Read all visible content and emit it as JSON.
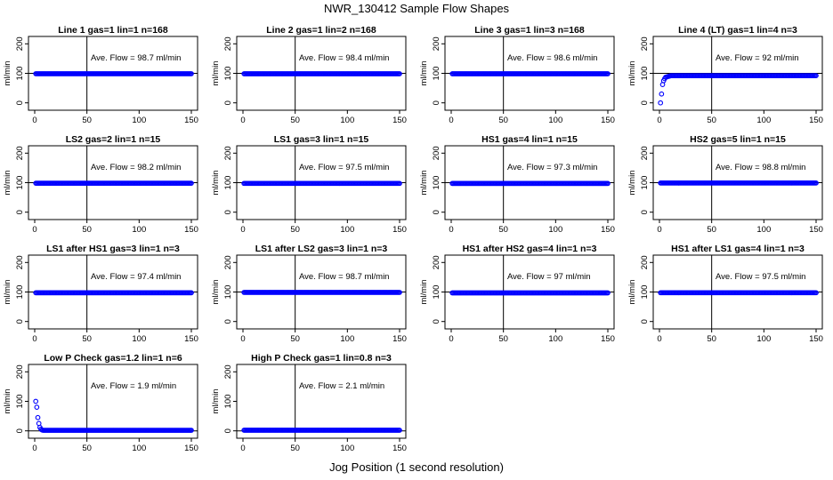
{
  "title": "NWR_130412  Sample Flow Shapes",
  "xlabel": "Jog Position (1 second resolution)",
  "colors": {
    "points": "#0000ff",
    "axes": "#000000"
  },
  "chart_data": [
    {
      "type": "scatter",
      "title": "Line 1 gas=1 lin=1 n=168",
      "ylabel": "ml/min",
      "annotation": "Ave. Flow =  98.7  ml/min",
      "xlim": [
        0,
        150
      ],
      "ylim": [
        0,
        200
      ],
      "vline": 50,
      "hline": 100,
      "xticks": [
        "0",
        "50",
        "100",
        "150"
      ],
      "yticks": [
        "0",
        "100",
        "200"
      ],
      "shape": "flat",
      "level": 98.7
    },
    {
      "type": "scatter",
      "title": "Line 2 gas=1 lin=2 n=168",
      "ylabel": "ml/min",
      "annotation": "Ave. Flow =  98.4  ml/min",
      "xlim": [
        0,
        150
      ],
      "ylim": [
        0,
        200
      ],
      "vline": 50,
      "hline": 100,
      "xticks": [
        "0",
        "50",
        "100",
        "150"
      ],
      "yticks": [
        "0",
        "100",
        "200"
      ],
      "shape": "flat",
      "level": 98.4
    },
    {
      "type": "scatter",
      "title": "Line 3 gas=1 lin=3 n=168",
      "ylabel": "ml/min",
      "annotation": "Ave. Flow =  98.6  ml/min",
      "xlim": [
        0,
        150
      ],
      "ylim": [
        0,
        200
      ],
      "vline": 50,
      "hline": 100,
      "xticks": [
        "0",
        "50",
        "100",
        "150"
      ],
      "yticks": [
        "0",
        "100",
        "200"
      ],
      "shape": "flat",
      "level": 98.6
    },
    {
      "type": "scatter",
      "title": "Line 4 (LT) gas=1 lin=4 n=3",
      "ylabel": "ml/min",
      "annotation": "Ave. Flow =  92  ml/min",
      "xlim": [
        0,
        150
      ],
      "ylim": [
        0,
        200
      ],
      "vline": 50,
      "hline": 100,
      "xticks": [
        "0",
        "50",
        "100",
        "150"
      ],
      "yticks": [
        "0",
        "100",
        "200"
      ],
      "shape": "rise",
      "level": 92,
      "start": [
        [
          1,
          0
        ],
        [
          2,
          30
        ],
        [
          3,
          62
        ],
        [
          4,
          75
        ],
        [
          5,
          82
        ]
      ]
    },
    {
      "type": "scatter",
      "title": "LS2 gas=2 lin=1 n=15",
      "ylabel": "ml/min",
      "annotation": "Ave. Flow =  98.2  ml/min",
      "xlim": [
        0,
        150
      ],
      "ylim": [
        0,
        200
      ],
      "vline": 50,
      "hline": 100,
      "xticks": [
        "0",
        "50",
        "100",
        "150"
      ],
      "yticks": [
        "0",
        "100",
        "200"
      ],
      "shape": "flat",
      "level": 98.2
    },
    {
      "type": "scatter",
      "title": "LS1 gas=3 lin=1 n=15",
      "ylabel": "ml/min",
      "annotation": "Ave. Flow =  97.5  ml/min",
      "xlim": [
        0,
        150
      ],
      "ylim": [
        0,
        200
      ],
      "vline": 50,
      "hline": 100,
      "xticks": [
        "0",
        "50",
        "100",
        "150"
      ],
      "yticks": [
        "0",
        "100",
        "200"
      ],
      "shape": "flat",
      "level": 97.5
    },
    {
      "type": "scatter",
      "title": "HS1 gas=4 lin=1 n=15",
      "ylabel": "ml/min",
      "annotation": "Ave. Flow =  97.3  ml/min",
      "xlim": [
        0,
        150
      ],
      "ylim": [
        0,
        200
      ],
      "vline": 50,
      "hline": 100,
      "xticks": [
        "0",
        "50",
        "100",
        "150"
      ],
      "yticks": [
        "0",
        "100",
        "200"
      ],
      "shape": "flat",
      "level": 97.3
    },
    {
      "type": "scatter",
      "title": "HS2 gas=5 lin=1 n=15",
      "ylabel": "ml/min",
      "annotation": "Ave. Flow =  98.8  ml/min",
      "xlim": [
        0,
        150
      ],
      "ylim": [
        0,
        200
      ],
      "vline": 50,
      "hline": 100,
      "xticks": [
        "0",
        "50",
        "100",
        "150"
      ],
      "yticks": [
        "0",
        "100",
        "200"
      ],
      "shape": "flat",
      "level": 98.8
    },
    {
      "type": "scatter",
      "title": "LS1 after HS1 gas=3 lin=1 n=3",
      "ylabel": "ml/min",
      "annotation": "Ave. Flow =  97.4  ml/min",
      "xlim": [
        0,
        150
      ],
      "ylim": [
        0,
        200
      ],
      "vline": 50,
      "hline": 100,
      "xticks": [
        "0",
        "50",
        "100",
        "150"
      ],
      "yticks": [
        "0",
        "100",
        "200"
      ],
      "shape": "flat",
      "level": 97.4
    },
    {
      "type": "scatter",
      "title": "LS1 after LS2 gas=3 lin=1 n=3",
      "ylabel": "ml/min",
      "annotation": "Ave. Flow =  98.7  ml/min",
      "xlim": [
        0,
        150
      ],
      "ylim": [
        0,
        200
      ],
      "vline": 50,
      "hline": 100,
      "xticks": [
        "0",
        "50",
        "100",
        "150"
      ],
      "yticks": [
        "0",
        "100",
        "200"
      ],
      "shape": "flat",
      "level": 98.7
    },
    {
      "type": "scatter",
      "title": "HS1 after HS2 gas=4 lin=1 n=3",
      "ylabel": "ml/min",
      "annotation": "Ave. Flow =  97  ml/min",
      "xlim": [
        0,
        150
      ],
      "ylim": [
        0,
        200
      ],
      "vline": 50,
      "hline": 100,
      "xticks": [
        "0",
        "50",
        "100",
        "150"
      ],
      "yticks": [
        "0",
        "100",
        "200"
      ],
      "shape": "flat",
      "level": 97
    },
    {
      "type": "scatter",
      "title": "HS1 after LS1 gas=4 lin=1 n=3",
      "ylabel": "ml/min",
      "annotation": "Ave. Flow =  97.5  ml/min",
      "xlim": [
        0,
        150
      ],
      "ylim": [
        0,
        200
      ],
      "vline": 50,
      "hline": 100,
      "xticks": [
        "0",
        "50",
        "100",
        "150"
      ],
      "yticks": [
        "0",
        "100",
        "200"
      ],
      "shape": "flat",
      "level": 97.5
    },
    {
      "type": "scatter",
      "title": "Low P Check gas=1.2 lin=1 n=6",
      "ylabel": "ml/min",
      "annotation": "Ave. Flow =  1.9  ml/min",
      "xlim": [
        0,
        150
      ],
      "ylim": [
        0,
        200
      ],
      "vline": 50,
      "hline": 0,
      "xticks": [
        "0",
        "50",
        "100",
        "150"
      ],
      "yticks": [
        "0",
        "100",
        "200"
      ],
      "shape": "decay",
      "level": 1.9,
      "start": [
        [
          1,
          100
        ],
        [
          2,
          80
        ],
        [
          3,
          45
        ],
        [
          4,
          25
        ],
        [
          5,
          12
        ],
        [
          6,
          6
        ],
        [
          7,
          3
        ]
      ]
    },
    {
      "type": "scatter",
      "title": "High P Check gas=1 lin=0.8 n=3",
      "ylabel": "ml/min",
      "annotation": "Ave. Flow =  2.1  ml/min",
      "xlim": [
        0,
        150
      ],
      "ylim": [
        0,
        200
      ],
      "vline": 50,
      "hline": 0,
      "xticks": [
        "0",
        "50",
        "100",
        "150"
      ],
      "yticks": [
        "0",
        "100",
        "200"
      ],
      "shape": "flat",
      "level": 2.1
    }
  ]
}
